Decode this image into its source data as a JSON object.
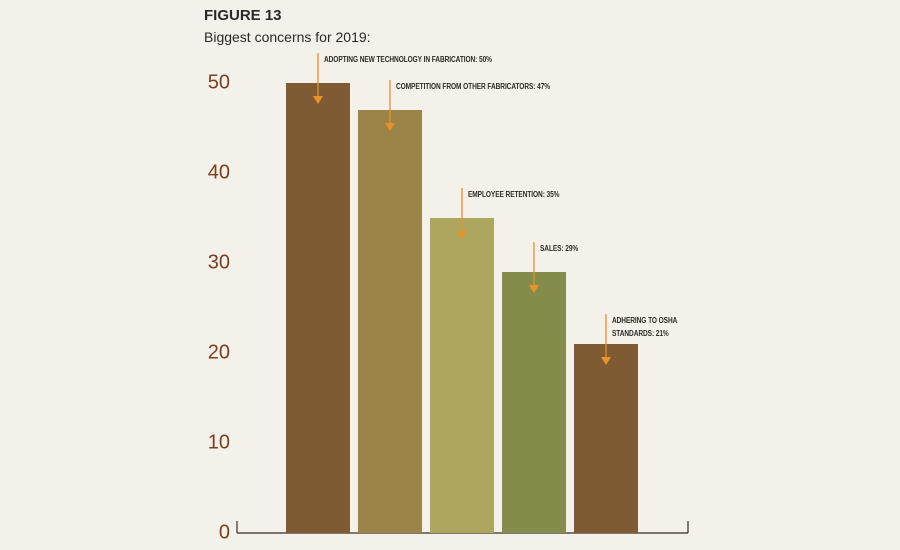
{
  "chart_data": {
    "type": "bar",
    "title": "FIGURE 13",
    "subtitle": "Biggest concerns for 2019:",
    "values": [
      50,
      47,
      35,
      29,
      21
    ],
    "value_labels": [
      "ADOPTING NEW TECHNOLOGY IN FABRICATION: 50%",
      "COMPETITION FROM OTHER FABRICATORS: 47%",
      "EMPLOYEE RETENTION: 35%",
      "SALES: 29%",
      "ADHERING TO OSHA STANDARDS: 21%"
    ],
    "colors": [
      "#7f5b33",
      "#9b8448",
      "#aca65e",
      "#858c4a",
      "#7f5b33"
    ],
    "annotation_color": "#e8922a",
    "ylim": [
      0,
      50
    ],
    "yticks": [
      0,
      10,
      20,
      30,
      40,
      50
    ],
    "grid": false
  }
}
